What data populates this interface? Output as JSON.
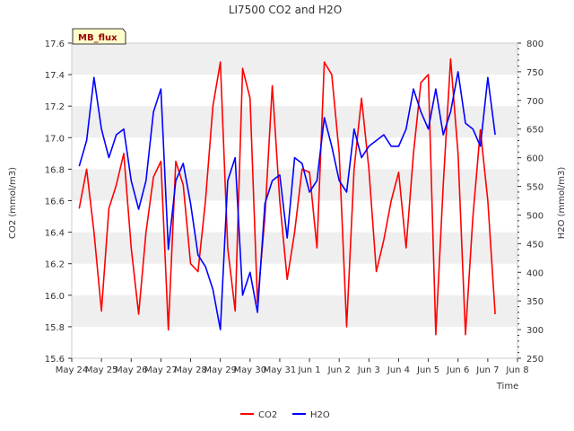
{
  "chart_data": {
    "type": "line",
    "title": "LI7500 CO2 and H2O",
    "site_label": "MB_flux",
    "xlabel": "Time",
    "ylabel_left": "CO2 (mmol/m3)",
    "ylabel_right": "H2O (mmol/m3)",
    "x_range_days": [
      "May 24",
      "Jun 8"
    ],
    "x_ticks": [
      "May 24",
      "May 25",
      "May 26",
      "May 27",
      "May 28",
      "May 29",
      "May 30",
      "May 31",
      "Jun 1",
      "Jun 2",
      "Jun 3",
      "Jun 4",
      "Jun 5",
      "Jun 6",
      "Jun 7",
      "Jun 8"
    ],
    "ylim_left": [
      15.6,
      17.6
    ],
    "yticks_left": [
      "15.6",
      "15.8",
      "16.0",
      "16.2",
      "16.4",
      "16.6",
      "16.8",
      "17.0",
      "17.2",
      "17.4",
      "17.6"
    ],
    "ylim_right": [
      250,
      800
    ],
    "yticks_right": [
      "250",
      "300",
      "350",
      "400",
      "450",
      "500",
      "550",
      "600",
      "650",
      "700",
      "750",
      "800"
    ],
    "grid": "horizontal bands",
    "legend_position": "bottom-center",
    "colors": {
      "co2": "#ff0000",
      "h2o": "#0000ff",
      "band": "#efefef",
      "label_bg": "#ffffcc",
      "label_text": "#990000"
    },
    "series": [
      {
        "name": "CO2",
        "axis": "left",
        "x": [
          "May 24 06:00",
          "May 24 12:00",
          "May 24 18:00",
          "May 25 00:00",
          "May 25 06:00",
          "May 25 12:00",
          "May 25 18:00",
          "May 26 00:00",
          "May 26 06:00",
          "May 26 12:00",
          "May 26 18:00",
          "May 27 00:00",
          "May 27 06:00",
          "May 27 12:00",
          "May 27 18:00",
          "May 28 00:00",
          "May 28 06:00",
          "May 28 12:00",
          "May 28 18:00",
          "May 29 00:00",
          "May 29 06:00",
          "May 29 12:00",
          "May 29 18:00",
          "May 30 00:00",
          "May 30 06:00",
          "May 30 12:00",
          "May 30 18:00",
          "May 31 00:00",
          "May 31 06:00",
          "May 31 12:00",
          "May 31 18:00",
          "Jun 1 00:00",
          "Jun 1 06:00",
          "Jun 1 12:00",
          "Jun 1 18:00",
          "Jun 2 00:00",
          "Jun 2 06:00",
          "Jun 2 12:00",
          "Jun 2 18:00",
          "Jun 3 00:00",
          "Jun 3 06:00",
          "Jun 3 12:00",
          "Jun 3 18:00",
          "Jun 4 00:00",
          "Jun 4 06:00",
          "Jun 4 12:00",
          "Jun 4 18:00",
          "Jun 5 00:00",
          "Jun 5 06:00",
          "Jun 5 12:00",
          "Jun 5 18:00",
          "Jun 6 00:00",
          "Jun 6 06:00",
          "Jun 6 12:00",
          "Jun 6 18:00",
          "Jun 7 00:00",
          "Jun 7 06:00"
        ],
        "values": [
          16.55,
          16.8,
          16.4,
          15.9,
          16.55,
          16.7,
          16.9,
          16.3,
          15.88,
          16.4,
          16.75,
          16.85,
          15.78,
          16.85,
          16.7,
          16.2,
          16.15,
          16.6,
          17.2,
          17.48,
          16.3,
          15.9,
          17.44,
          17.25,
          15.95,
          16.5,
          17.33,
          16.6,
          16.1,
          16.4,
          16.8,
          16.78,
          16.3,
          17.48,
          17.4,
          16.9,
          15.8,
          16.8,
          17.25,
          16.8,
          16.15,
          16.35,
          16.6,
          16.78,
          16.3,
          16.9,
          17.35,
          17.4,
          15.75,
          16.7,
          17.5,
          16.9,
          15.75,
          16.5,
          17.05,
          16.6,
          15.88
        ]
      },
      {
        "name": "H2O",
        "axis": "right",
        "x": [
          "May 24 06:00",
          "May 24 12:00",
          "May 24 18:00",
          "May 25 00:00",
          "May 25 06:00",
          "May 25 12:00",
          "May 25 18:00",
          "May 26 00:00",
          "May 26 06:00",
          "May 26 12:00",
          "May 26 18:00",
          "May 27 00:00",
          "May 27 06:00",
          "May 27 12:00",
          "May 27 18:00",
          "May 28 00:00",
          "May 28 06:00",
          "May 28 12:00",
          "May 28 18:00",
          "May 29 00:00",
          "May 29 06:00",
          "May 29 12:00",
          "May 29 18:00",
          "May 30 00:00",
          "May 30 06:00",
          "May 30 12:00",
          "May 30 18:00",
          "May 31 00:00",
          "May 31 06:00",
          "May 31 12:00",
          "May 31 18:00",
          "Jun 1 00:00",
          "Jun 1 06:00",
          "Jun 1 12:00",
          "Jun 1 18:00",
          "Jun 2 00:00",
          "Jun 2 06:00",
          "Jun 2 12:00",
          "Jun 2 18:00",
          "Jun 3 00:00",
          "Jun 3 06:00",
          "Jun 3 12:00",
          "Jun 3 18:00",
          "Jun 4 00:00",
          "Jun 4 06:00",
          "Jun 4 12:00",
          "Jun 4 18:00",
          "Jun 5 00:00",
          "Jun 5 06:00",
          "Jun 5 12:00",
          "Jun 5 18:00",
          "Jun 6 00:00",
          "Jun 6 06:00",
          "Jun 6 12:00",
          "Jun 6 18:00",
          "Jun 7 00:00",
          "Jun 7 06:00"
        ],
        "values": [
          585,
          630,
          740,
          650,
          600,
          640,
          650,
          560,
          510,
          560,
          680,
          720,
          440,
          560,
          590,
          520,
          430,
          410,
          370,
          300,
          560,
          600,
          360,
          400,
          330,
          520,
          560,
          570,
          460,
          600,
          590,
          540,
          560,
          670,
          620,
          560,
          540,
          650,
          600,
          620,
          630,
          640,
          620,
          620,
          650,
          720,
          680,
          650,
          720,
          640,
          680,
          750,
          660,
          650,
          620,
          740,
          640
        ]
      }
    ]
  }
}
